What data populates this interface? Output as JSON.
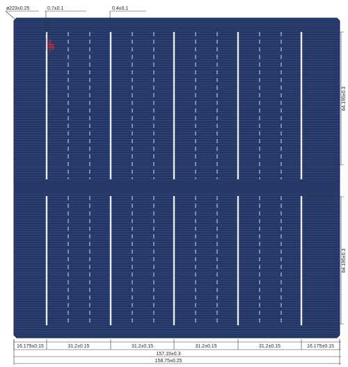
{
  "colors": {
    "cell": "#233563",
    "cell_line": "#2e4373",
    "busbar": "#e9edf4",
    "finger_dash": "#d6dcea",
    "logo": "#c8283c",
    "dim_line": "#333333"
  },
  "dimensions": {
    "chamfer_dia": "ø223±0.25",
    "busbar_width": "0.7±0.1",
    "finger_width": "0.4±0.1",
    "bottom_segments": [
      "16.175±0.15",
      "31.2±0.15",
      "31.2±0.15",
      "31.2±0.15",
      "31.2±0.15",
      "16.175±0.15"
    ],
    "busbar_span": "157.15±0.3",
    "wafer_width": "158.75±0.25",
    "half_height_top": "64.195±0.3",
    "half_height_bottom": "64.195±0.3"
  },
  "logo": {
    "icon": "company-logo-icon"
  }
}
